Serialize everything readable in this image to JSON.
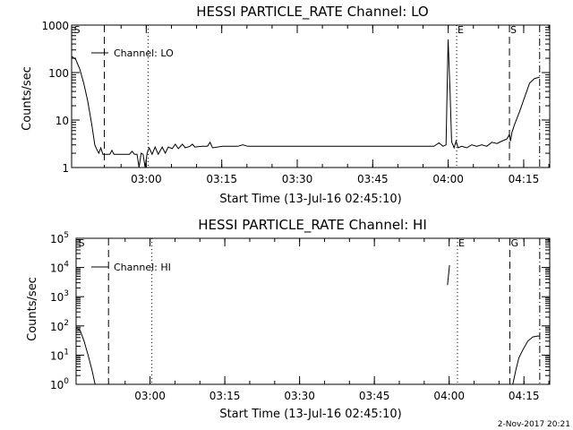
{
  "footer_timestamp": "2-Nov-2017 20:21",
  "chart_data": [
    {
      "type": "line",
      "title": "HESSI PARTICLE_RATE Channel: LO",
      "xlabel": "Start Time (13-Jul-16 02:45:10)",
      "ylabel": "Counts/sec",
      "y_scale": "log",
      "ylim": [
        1,
        1000
      ],
      "xlim": [
        0,
        95
      ],
      "y_ticks": [
        {
          "value": 1,
          "label": "1"
        },
        {
          "value": 10,
          "label": "10"
        },
        {
          "value": 100,
          "label": "100"
        },
        {
          "value": 1000,
          "label": "1000"
        }
      ],
      "x_ticks": [
        {
          "value": 14.83,
          "label": "03:00"
        },
        {
          "value": 29.83,
          "label": "03:15"
        },
        {
          "value": 44.83,
          "label": "03:30"
        },
        {
          "value": 59.83,
          "label": "03:45"
        },
        {
          "value": 74.83,
          "label": "04:00"
        },
        {
          "value": 89.83,
          "label": "04:15"
        }
      ],
      "legend": {
        "label": "Channel: LO",
        "position": "top-left"
      },
      "markers": [
        {
          "x": 0.3,
          "label": "S",
          "style": "none"
        },
        {
          "x": 6.5,
          "label": "",
          "style": "dashed"
        },
        {
          "x": 15.2,
          "label": "",
          "style": "dotted"
        },
        {
          "x": 76.5,
          "label": "E",
          "style": "dotted"
        },
        {
          "x": 87.0,
          "label": "S",
          "style": "dashed"
        },
        {
          "x": 93.0,
          "label": "",
          "style": "dashdot"
        }
      ],
      "series": [
        {
          "style": "solid",
          "segments": [
            [
              [
                0.0,
                220
              ],
              [
                0.8,
                190
              ],
              [
                1.6,
                120
              ],
              [
                2.4,
                60
              ],
              [
                3.2,
                25
              ],
              [
                4.0,
                8
              ],
              [
                4.6,
                3.0
              ],
              [
                5.0,
                2.4
              ],
              [
                5.4,
                2.0
              ],
              [
                5.8,
                2.6
              ],
              [
                6.2,
                1.9
              ],
              [
                7.0,
                1.9
              ],
              [
                7.6,
                1.9
              ],
              [
                8.0,
                2.3
              ],
              [
                8.4,
                1.9
              ],
              [
                9.5,
                1.9
              ],
              [
                10.0,
                1.9
              ],
              [
                11.5,
                1.9
              ],
              [
                12.0,
                2.2
              ],
              [
                12.5,
                1.9
              ],
              [
                13.0,
                1.9
              ],
              [
                13.4,
                1.0
              ],
              [
                13.8,
                2.0
              ],
              [
                14.2,
                1.9
              ],
              [
                14.6,
                1.0
              ],
              [
                15.0,
                2.0
              ],
              [
                15.4,
                2.6
              ],
              [
                16.0,
                1.9
              ],
              [
                16.6,
                2.7
              ],
              [
                17.2,
                1.9
              ],
              [
                18.0,
                2.7
              ],
              [
                18.6,
                2.0
              ],
              [
                19.2,
                2.7
              ],
              [
                20.0,
                2.5
              ],
              [
                20.6,
                3.1
              ],
              [
                21.2,
                2.5
              ],
              [
                22.0,
                3.1
              ],
              [
                22.6,
                2.6
              ],
              [
                23.5,
                2.8
              ],
              [
                24.0,
                3.1
              ],
              [
                24.5,
                2.7
              ],
              [
                26.0,
                2.8
              ],
              [
                27.0,
                2.8
              ],
              [
                27.5,
                3.4
              ],
              [
                28.0,
                2.6
              ],
              [
                30.0,
                2.8
              ],
              [
                33.0,
                2.8
              ],
              [
                34.0,
                3.0
              ],
              [
                35.0,
                2.8
              ],
              [
                40.0,
                2.8
              ],
              [
                44.0,
                2.8
              ],
              [
                48.0,
                2.8
              ],
              [
                52.0,
                2.8
              ],
              [
                58.0,
                2.8
              ],
              [
                62.0,
                2.8
              ],
              [
                66.0,
                2.8
              ],
              [
                70.0,
                2.8
              ],
              [
                72.0,
                2.8
              ],
              [
                73.0,
                3.3
              ],
              [
                73.8,
                2.8
              ],
              [
                74.4,
                3.0
              ],
              [
                74.8,
                500
              ],
              [
                75.2,
                40
              ],
              [
                75.5,
                3.5
              ],
              [
                76.0,
                2.6
              ],
              [
                76.4,
                3.6
              ],
              [
                76.8,
                2.6
              ],
              [
                77.5,
                2.8
              ],
              [
                78.5,
                2.6
              ],
              [
                79.5,
                3.0
              ],
              [
                80.5,
                2.8
              ],
              [
                81.5,
                3.0
              ],
              [
                82.5,
                2.8
              ],
              [
                83.5,
                3.4
              ],
              [
                84.5,
                3.2
              ],
              [
                85.5,
                3.6
              ],
              [
                86.5,
                4.0
              ],
              [
                87.0,
                5.0
              ],
              [
                87.2,
                3.6
              ],
              [
                87.5,
                5.5
              ],
              [
                88.0,
                8
              ],
              [
                89.0,
                15
              ],
              [
                90.0,
                30
              ],
              [
                91.0,
                60
              ],
              [
                92.0,
                75
              ],
              [
                93.0,
                80
              ]
            ]
          ]
        }
      ]
    },
    {
      "type": "line",
      "title": "HESSI PARTICLE_RATE Channel: HI",
      "xlabel": "Start Time (13-Jul-16 02:45:10)",
      "ylabel": "Counts/sec",
      "y_scale": "log",
      "ylim": [
        1,
        100000
      ],
      "xlim": [
        0,
        95
      ],
      "y_ticks": [
        {
          "value": 1,
          "label": "10",
          "exp": "0"
        },
        {
          "value": 10,
          "label": "10",
          "exp": "1"
        },
        {
          "value": 100,
          "label": "10",
          "exp": "2"
        },
        {
          "value": 1000,
          "label": "10",
          "exp": "3"
        },
        {
          "value": 10000,
          "label": "10",
          "exp": "4"
        },
        {
          "value": 100000,
          "label": "10",
          "exp": "5"
        }
      ],
      "x_ticks": [
        {
          "value": 14.83,
          "label": "03:00"
        },
        {
          "value": 29.83,
          "label": "03:15"
        },
        {
          "value": 44.83,
          "label": "03:30"
        },
        {
          "value": 59.83,
          "label": "03:45"
        },
        {
          "value": 74.83,
          "label": "04:00"
        },
        {
          "value": 89.83,
          "label": "04:15"
        }
      ],
      "legend": {
        "label": "Channel: HI",
        "position": "top-left"
      },
      "markers": [
        {
          "x": 0.3,
          "label": "S",
          "style": "none"
        },
        {
          "x": 6.5,
          "label": "",
          "style": "dashed"
        },
        {
          "x": 15.2,
          "label": "",
          "style": "dotted"
        },
        {
          "x": 76.5,
          "label": "E",
          "style": "dotted"
        },
        {
          "x": 87.0,
          "label": "G",
          "style": "dashed"
        },
        {
          "x": 93.0,
          "label": "",
          "style": "dashdot"
        }
      ],
      "series": [
        {
          "style": "solid",
          "segments": [
            [
              [
                0.0,
                85
              ],
              [
                0.8,
                70
              ],
              [
                1.6,
                30
              ],
              [
                2.4,
                10
              ],
              [
                3.2,
                3
              ],
              [
                3.8,
                1.0
              ]
            ],
            [
              [
                74.5,
                2500
              ],
              [
                74.9,
                12000
              ]
            ],
            [
              [
                87.6,
                1.0
              ],
              [
                88.2,
                3
              ],
              [
                88.8,
                8
              ],
              [
                89.6,
                15
              ],
              [
                90.6,
                30
              ],
              [
                91.6,
                42
              ],
              [
                92.6,
                45
              ],
              [
                93.0,
                45
              ]
            ]
          ]
        }
      ]
    }
  ]
}
